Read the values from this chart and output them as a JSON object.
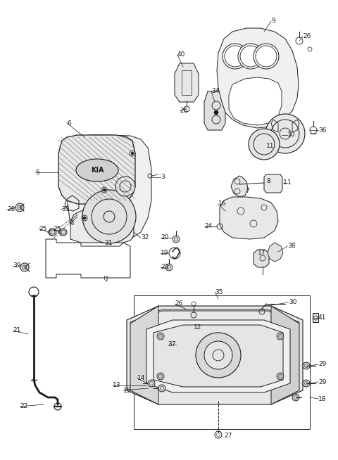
{
  "bg_color": "#ffffff",
  "line_color": "#1a1a1a",
  "fig_width": 4.8,
  "fig_height": 6.54,
  "dpi": 100
}
